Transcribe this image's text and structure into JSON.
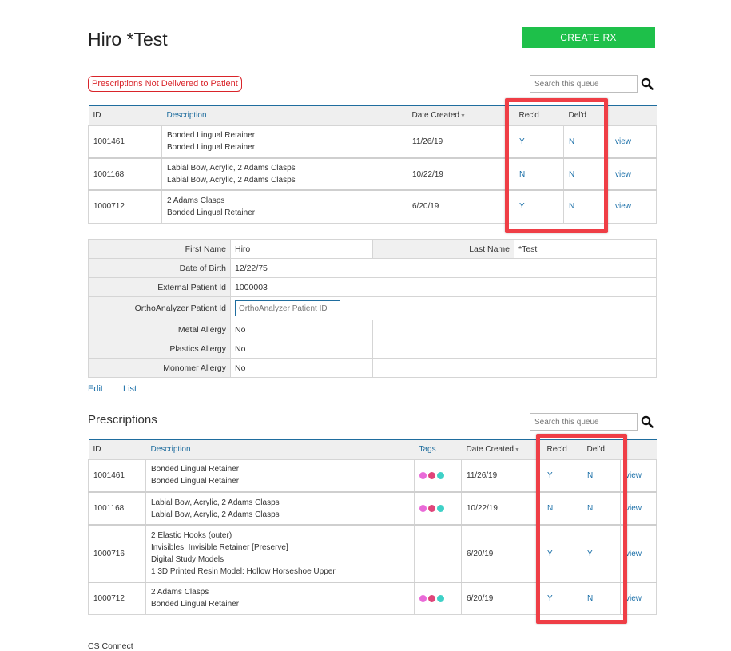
{
  "header": {
    "title": "Hiro *Test",
    "create_label": "CREATE RX"
  },
  "queue1": {
    "badge": "Prescriptions Not Delivered to Patient",
    "search_placeholder": "Search this queue",
    "columns": {
      "id": "ID",
      "description": "Description",
      "date": "Date Created",
      "recd": "Rec'd",
      "deld": "Del'd"
    },
    "rows": [
      {
        "id": "1001461",
        "desc": [
          "Bonded Lingual Retainer",
          "Bonded Lingual Retainer"
        ],
        "date": "11/26/19",
        "recd": "Y",
        "deld": "N",
        "view": "view"
      },
      {
        "id": "1001168",
        "desc": [
          "Labial Bow, Acrylic, 2 Adams Clasps",
          "Labial Bow, Acrylic, 2 Adams Clasps"
        ],
        "date": "10/22/19",
        "recd": "N",
        "deld": "N",
        "view": "view"
      },
      {
        "id": "1000712",
        "desc": [
          "2 Adams Clasps",
          "Bonded Lingual Retainer"
        ],
        "date": "6/20/19",
        "recd": "Y",
        "deld": "N",
        "view": "view"
      }
    ]
  },
  "patient": {
    "first_name_label": "First Name",
    "first_name": "Hiro",
    "last_name_label": "Last Name",
    "last_name": "*Test",
    "dob_label": "Date of Birth",
    "dob": "12/22/75",
    "ext_id_label": "External Patient Id",
    "ext_id": "1000003",
    "ortho_label": "OrthoAnalyzer Patient Id",
    "ortho_placeholder": "OrthoAnalyzer Patient ID",
    "metal_label": "Metal Allergy",
    "metal": "No",
    "plastics_label": "Plastics Allergy",
    "plastics": "No",
    "monomer_label": "Monomer Allergy",
    "monomer": "No",
    "edit_label": "Edit",
    "list_label": "List"
  },
  "prescriptions": {
    "title": "Prescriptions",
    "search_placeholder": "Search this queue",
    "columns": {
      "id": "ID",
      "description": "Description",
      "tags": "Tags",
      "date": "Date Created",
      "recd": "Rec'd",
      "deld": "Del'd"
    },
    "tag_colors": [
      "#e96ad8",
      "#e0457a",
      "#3fd1c7"
    ],
    "rows": [
      {
        "id": "1001461",
        "desc": [
          "Bonded Lingual Retainer",
          "Bonded Lingual Retainer"
        ],
        "tags": true,
        "date": "11/26/19",
        "recd": "Y",
        "deld": "N",
        "view": "view"
      },
      {
        "id": "1001168",
        "desc": [
          "Labial Bow, Acrylic, 2 Adams Clasps",
          "Labial Bow, Acrylic, 2 Adams Clasps"
        ],
        "tags": true,
        "date": "10/22/19",
        "recd": "N",
        "deld": "N",
        "view": "view"
      },
      {
        "id": "1000716",
        "desc": [
          "2 Elastic Hooks (outer)",
          "Invisibles: Invisible Retainer [Preserve]",
          "Digital Study Models",
          "1 3D Printed Resin Model: Hollow Horseshoe Upper"
        ],
        "tags": false,
        "date": "6/20/19",
        "recd": "Y",
        "deld": "Y",
        "view": "view"
      },
      {
        "id": "1000712",
        "desc": [
          "2 Adams Clasps",
          "Bonded Lingual Retainer"
        ],
        "tags": true,
        "date": "6/20/19",
        "recd": "Y",
        "deld": "N",
        "view": "view"
      }
    ]
  },
  "footer": {
    "text": "CS Connect"
  },
  "colors": {
    "accent_green": "#1ec04a",
    "header_blue": "#1f6d9e",
    "alert_red": "#d9242a",
    "highlight_red": "#ef3e46"
  }
}
